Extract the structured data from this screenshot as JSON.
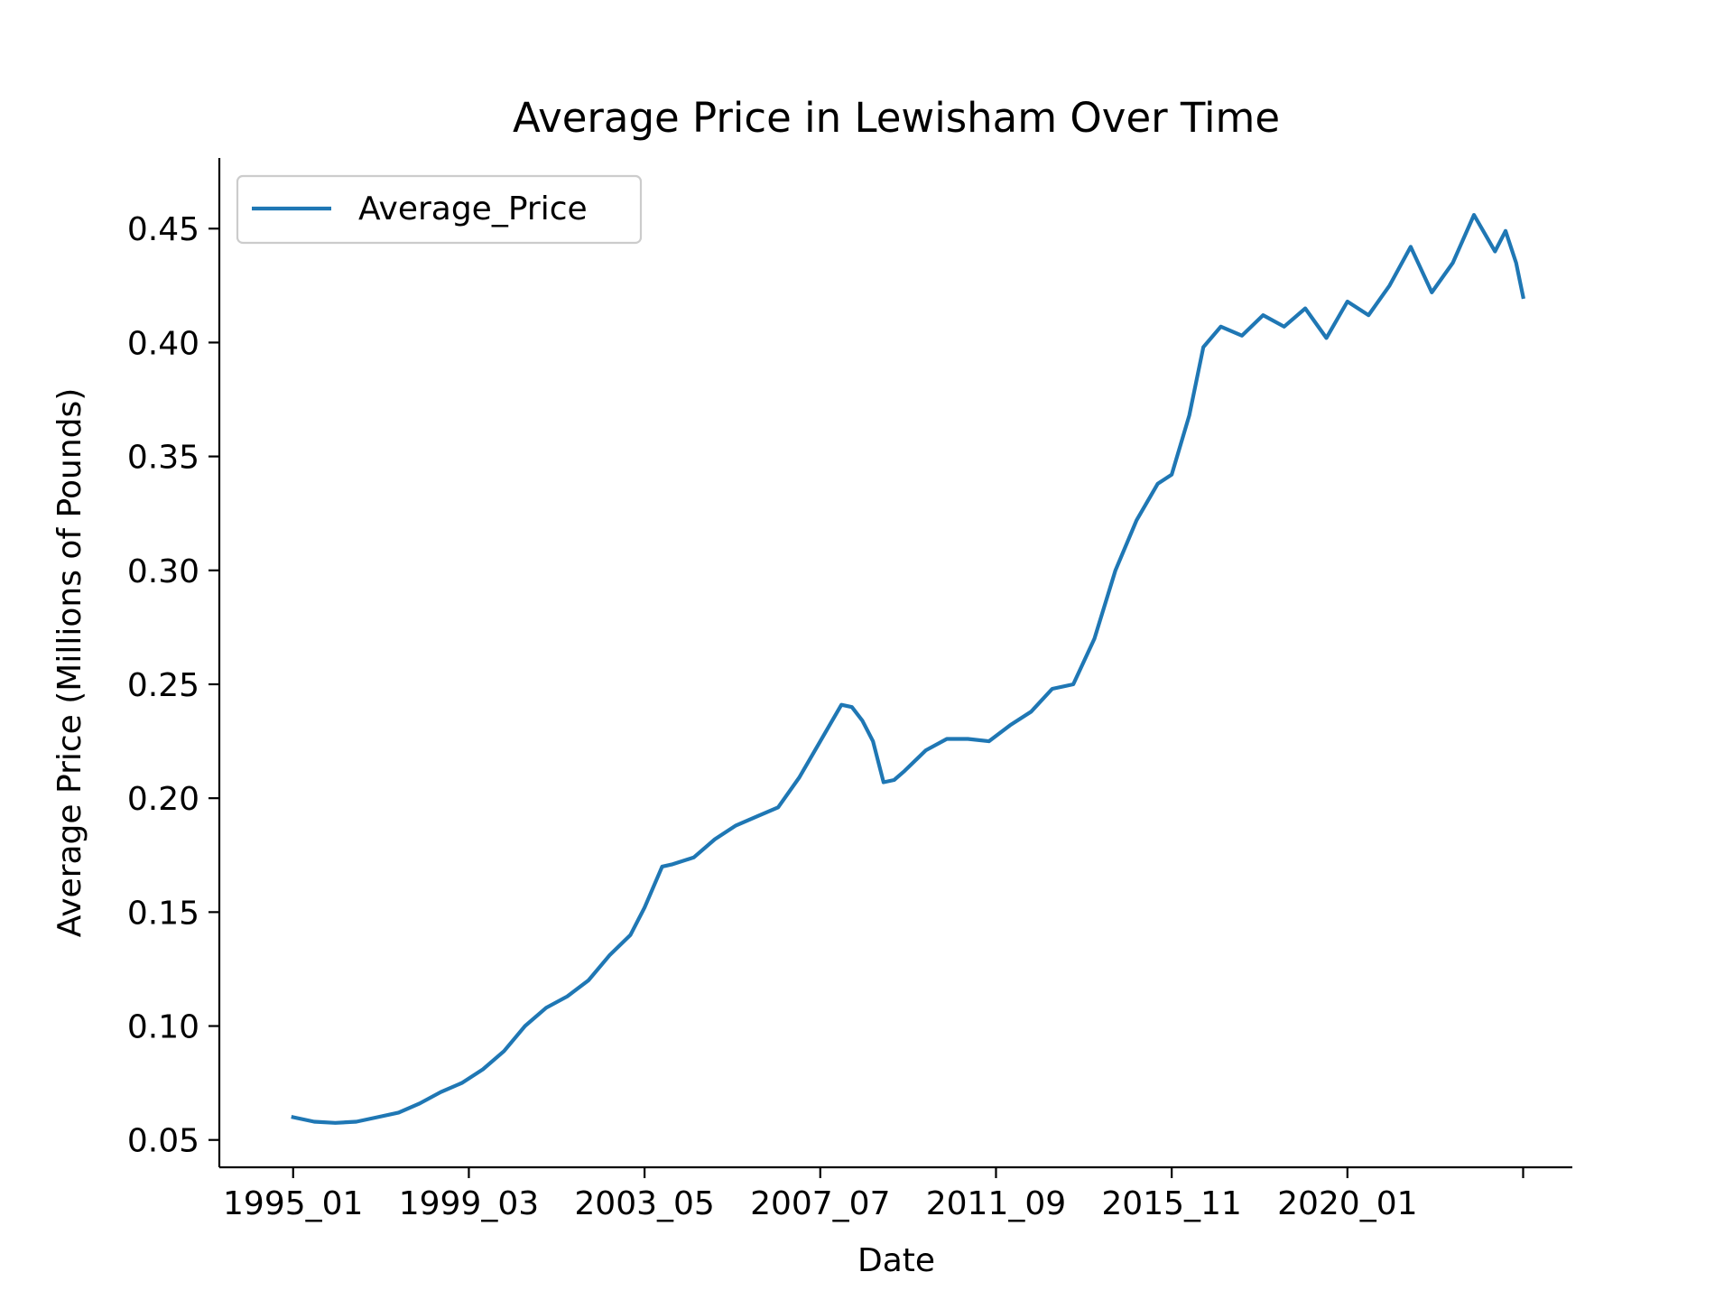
{
  "chart_data": {
    "type": "line",
    "title": "Average Price in Lewisham Over Time",
    "xlabel": "Date",
    "ylabel": "Average Price (Millions of Pounds)",
    "x_tick_labels": [
      "1995_01",
      "1999_03",
      "2003_05",
      "2007_07",
      "2011_09",
      "2015_11",
      "2020_01",
      ""
    ],
    "x_tick_dates": [
      "1995_01",
      "1999_03",
      "2003_05",
      "2007_07",
      "2011_09",
      "2015_11",
      "2020_01",
      "2024_03"
    ],
    "xlim": [
      "1993_04",
      "2025_05"
    ],
    "y_ticks": [
      0.05,
      0.1,
      0.15,
      0.2,
      0.25,
      0.3,
      0.35,
      0.4,
      0.45
    ],
    "ylim": [
      0.038,
      0.481
    ],
    "grid": false,
    "legend_position": "upper-left",
    "series": [
      {
        "name": "Average_Price",
        "color": "#1f77b4",
        "points": [
          [
            "1995_01",
            0.06
          ],
          [
            "1995_07",
            0.058
          ],
          [
            "1996_01",
            0.0575
          ],
          [
            "1996_07",
            0.058
          ],
          [
            "1997_01",
            0.06
          ],
          [
            "1997_07",
            0.062
          ],
          [
            "1998_01",
            0.066
          ],
          [
            "1998_07",
            0.071
          ],
          [
            "1999_01",
            0.075
          ],
          [
            "1999_03",
            0.077
          ],
          [
            "1999_07",
            0.081
          ],
          [
            "2000_01",
            0.089
          ],
          [
            "2000_07",
            0.1
          ],
          [
            "2001_01",
            0.108
          ],
          [
            "2001_07",
            0.113
          ],
          [
            "2002_01",
            0.12
          ],
          [
            "2002_07",
            0.131
          ],
          [
            "2003_01",
            0.14
          ],
          [
            "2003_05",
            0.152
          ],
          [
            "2003_10",
            0.17
          ],
          [
            "2004_01",
            0.171
          ],
          [
            "2004_07",
            0.174
          ],
          [
            "2005_01",
            0.182
          ],
          [
            "2005_07",
            0.188
          ],
          [
            "2006_01",
            0.192
          ],
          [
            "2006_07",
            0.196
          ],
          [
            "2007_01",
            0.209
          ],
          [
            "2007_07",
            0.225
          ],
          [
            "2008_01",
            0.241
          ],
          [
            "2008_04",
            0.24
          ],
          [
            "2008_07",
            0.234
          ],
          [
            "2008_10",
            0.225
          ],
          [
            "2009_01",
            0.207
          ],
          [
            "2009_04",
            0.208
          ],
          [
            "2009_07",
            0.212
          ],
          [
            "2010_01",
            0.221
          ],
          [
            "2010_07",
            0.226
          ],
          [
            "2011_01",
            0.226
          ],
          [
            "2011_07",
            0.225
          ],
          [
            "2012_01",
            0.232
          ],
          [
            "2012_07",
            0.238
          ],
          [
            "2013_01",
            0.248
          ],
          [
            "2013_07",
            0.25
          ],
          [
            "2014_01",
            0.27
          ],
          [
            "2014_07",
            0.3
          ],
          [
            "2015_01",
            0.322
          ],
          [
            "2015_07",
            0.338
          ],
          [
            "2015_11",
            0.342
          ],
          [
            "2016_04",
            0.368
          ],
          [
            "2016_08",
            0.398
          ],
          [
            "2017_01",
            0.407
          ],
          [
            "2017_07",
            0.403
          ],
          [
            "2018_01",
            0.412
          ],
          [
            "2018_07",
            0.407
          ],
          [
            "2019_01",
            0.415
          ],
          [
            "2019_07",
            0.402
          ],
          [
            "2020_01",
            0.418
          ],
          [
            "2020_07",
            0.412
          ],
          [
            "2021_01",
            0.425
          ],
          [
            "2021_07",
            0.442
          ],
          [
            "2022_01",
            0.422
          ],
          [
            "2022_07",
            0.435
          ],
          [
            "2023_01",
            0.456
          ],
          [
            "2023_04",
            0.448
          ],
          [
            "2023_07",
            0.44
          ],
          [
            "2023_10",
            0.449
          ],
          [
            "2024_01",
            0.435
          ],
          [
            "2024_03",
            0.42
          ]
        ]
      }
    ]
  }
}
